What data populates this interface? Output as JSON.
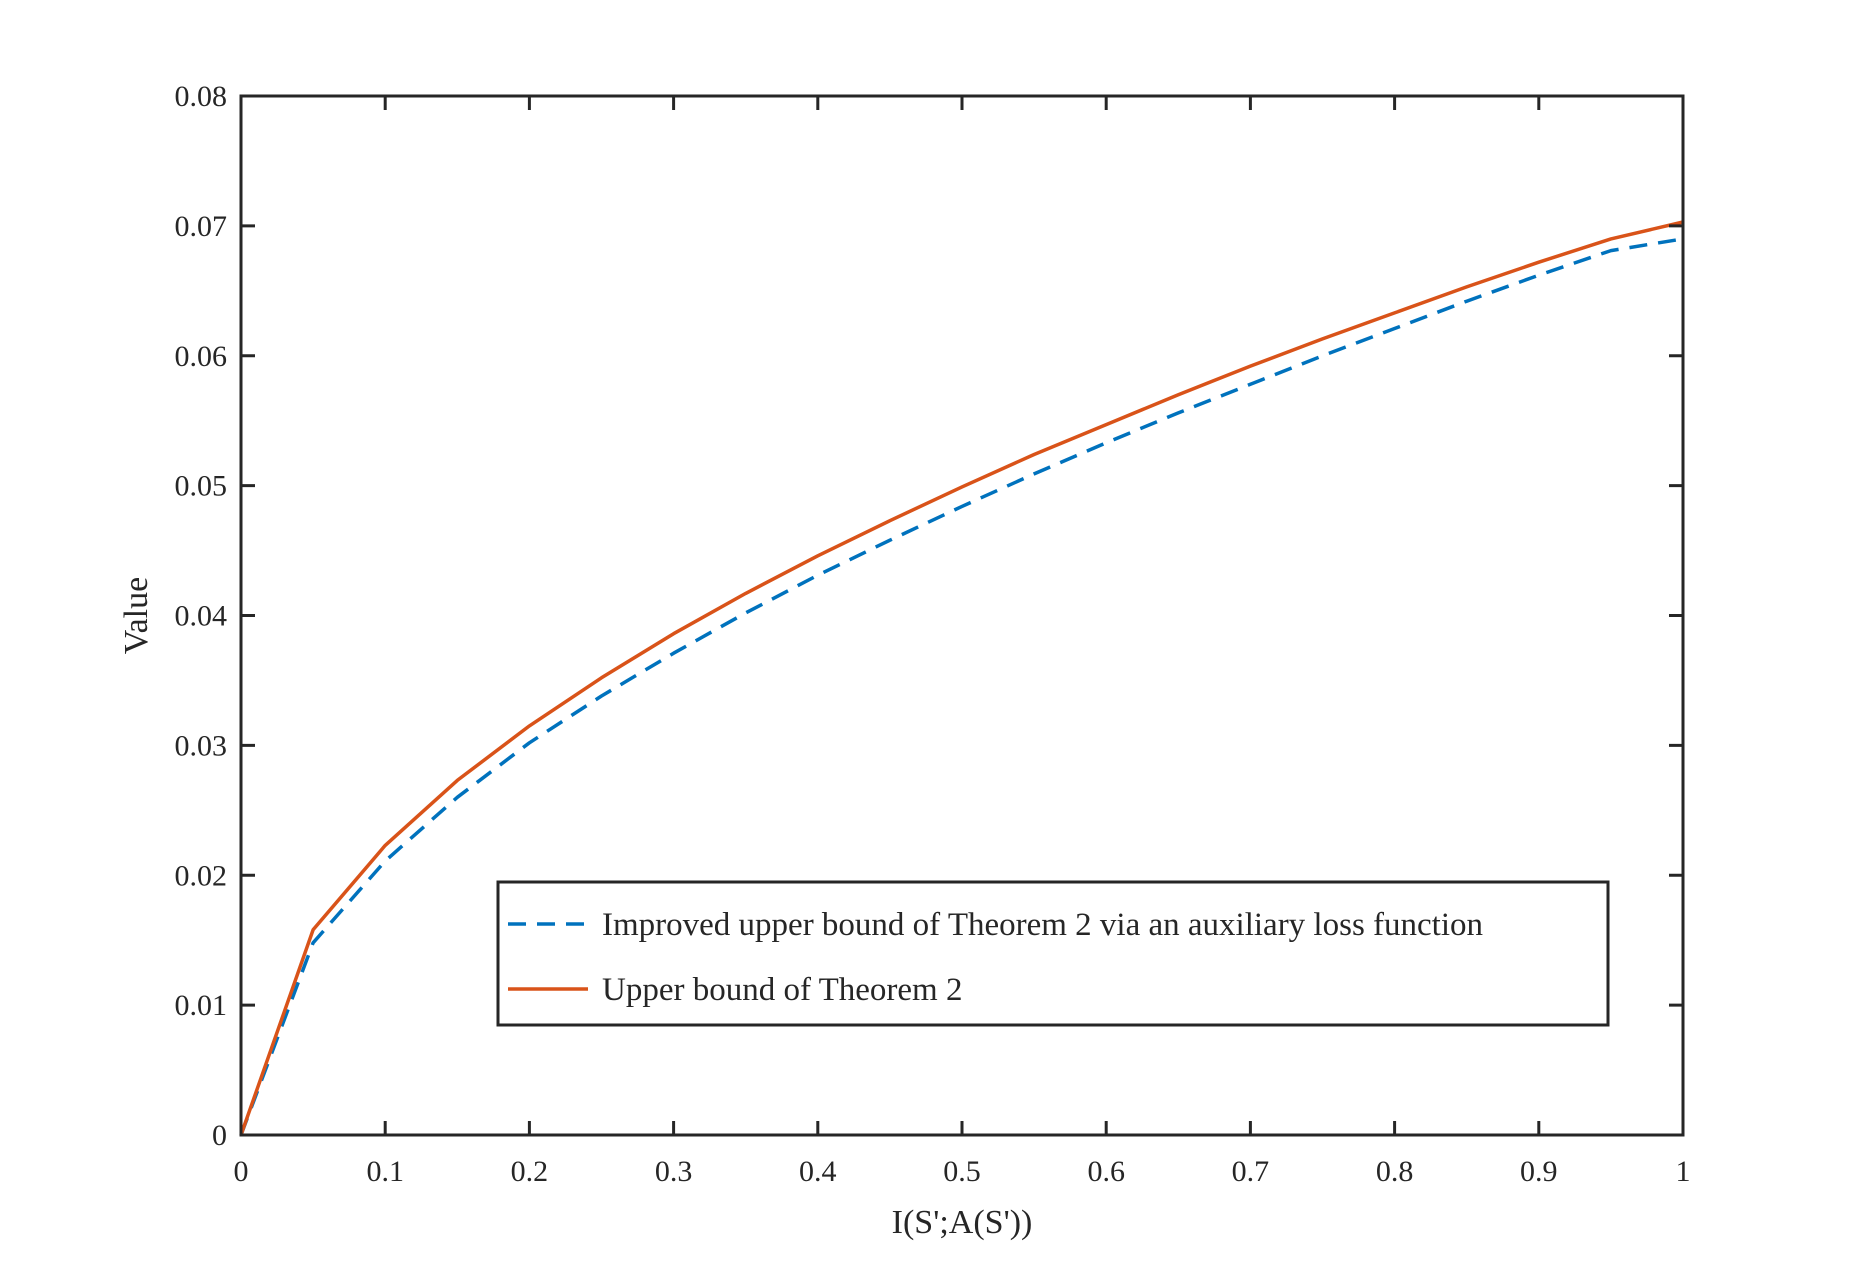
{
  "chart_data": {
    "type": "line",
    "title": "",
    "xlabel": "I(S';A(S'))",
    "ylabel": "Value",
    "xlim": [
      0,
      1
    ],
    "ylim": [
      0,
      0.08
    ],
    "x_ticks": [
      0,
      0.1,
      0.2,
      0.3,
      0.4,
      0.5,
      0.6,
      0.7,
      0.8,
      0.9,
      1
    ],
    "x_tick_labels": [
      "0",
      "0.1",
      "0.2",
      "0.3",
      "0.4",
      "0.5",
      "0.6",
      "0.7",
      "0.8",
      "0.9",
      "1"
    ],
    "y_ticks": [
      0,
      0.01,
      0.02,
      0.03,
      0.04,
      0.05,
      0.06,
      0.07,
      0.08
    ],
    "y_tick_labels": [
      "0",
      "0.01",
      "0.02",
      "0.03",
      "0.04",
      "0.05",
      "0.06",
      "0.07",
      "0.08"
    ],
    "grid": false,
    "legend_position": "bottom-right",
    "x": [
      0,
      0.05,
      0.1,
      0.15,
      0.2,
      0.25,
      0.3,
      0.35,
      0.4,
      0.45,
      0.5,
      0.55,
      0.6,
      0.65,
      0.7,
      0.75,
      0.8,
      0.85,
      0.9,
      0.95,
      1
    ],
    "series": [
      {
        "name": "Improved upper bound of Theorem 2 via an auxiliary loss function",
        "style": "dashed",
        "color": "#0072BD",
        "values": [
          0,
          0.0148,
          0.0211,
          0.026,
          0.0302,
          0.0338,
          0.0371,
          0.0402,
          0.0431,
          0.0458,
          0.0484,
          0.0509,
          0.0533,
          0.0556,
          0.0578,
          0.06,
          0.0621,
          0.0642,
          0.0662,
          0.0681,
          0.069
        ]
      },
      {
        "name": "Upper bound of Theorem 2",
        "style": "solid",
        "color": "#D95319",
        "values": [
          0,
          0.0158,
          0.0223,
          0.0273,
          0.0315,
          0.0352,
          0.0386,
          0.0417,
          0.0446,
          0.0473,
          0.0499,
          0.0524,
          0.0547,
          0.057,
          0.0592,
          0.0613,
          0.0633,
          0.0653,
          0.0672,
          0.069,
          0.0703
        ]
      }
    ]
  }
}
